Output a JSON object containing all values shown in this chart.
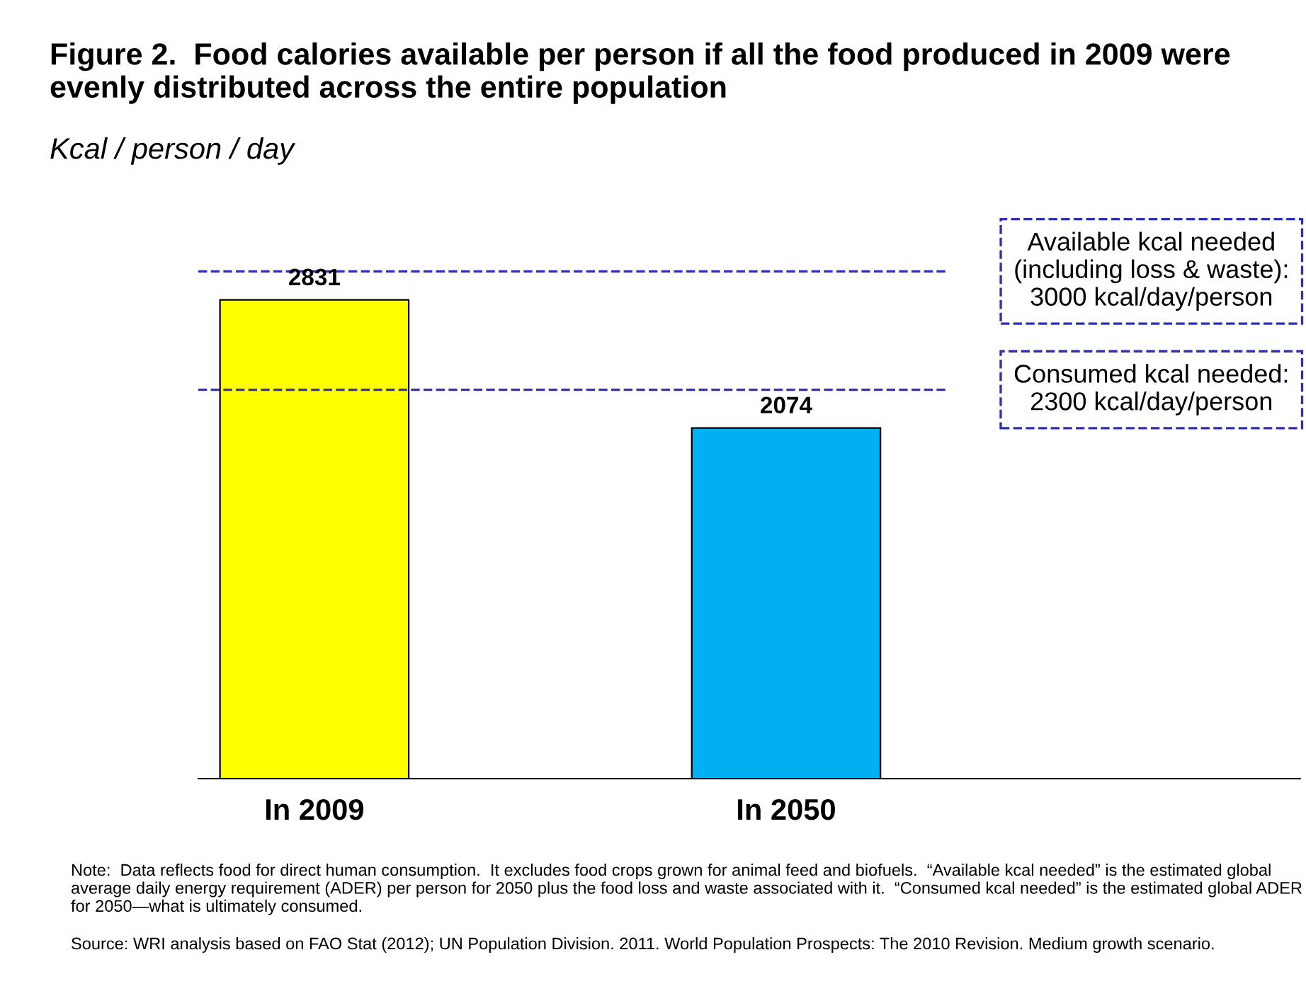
{
  "chart_data": {
    "type": "bar",
    "title": "Figure 2.  Food calories available per person if all the food produced in 2009 were evenly distributed across the entire population",
    "subtitle": "Kcal / person / day",
    "categories": [
      "In 2009",
      "In 2050"
    ],
    "values": [
      2831,
      2074
    ],
    "colors": [
      "#ffff00",
      "#00b0f0"
    ],
    "data_labels": true,
    "grid": false,
    "tick_labels": "x",
    "ref_lines": [
      {
        "axis": "y",
        "value": 3000,
        "label": "Available kcal needed\n(including loss & waste):\n3000 kcal/day/person",
        "color": "#2e2eb8",
        "line_style": "dashed"
      },
      {
        "axis": "y",
        "value": 2300,
        "label": "Consumed kcal needed:\n2300 kcal/day/person",
        "color": "#2e2eb8",
        "line_style": "dashed"
      }
    ],
    "annotations": [
      "Note:  Data reflects food for direct human consumption.  It excludes food crops grown for animal feed and biofuels.  “Available kcal needed” is the estimated global average daily energy requirement (ADER) per person for 2050 plus the food loss and waste associated with it.  “Consumed kcal needed” is the estimated global ADER for 2050—what is ultimately consumed.",
      "Source: WRI analysis based on FAO Stat (2012); UN Population Division. 2011. World Population Prospects: The 2010 Revision. Medium growth scenario."
    ]
  }
}
